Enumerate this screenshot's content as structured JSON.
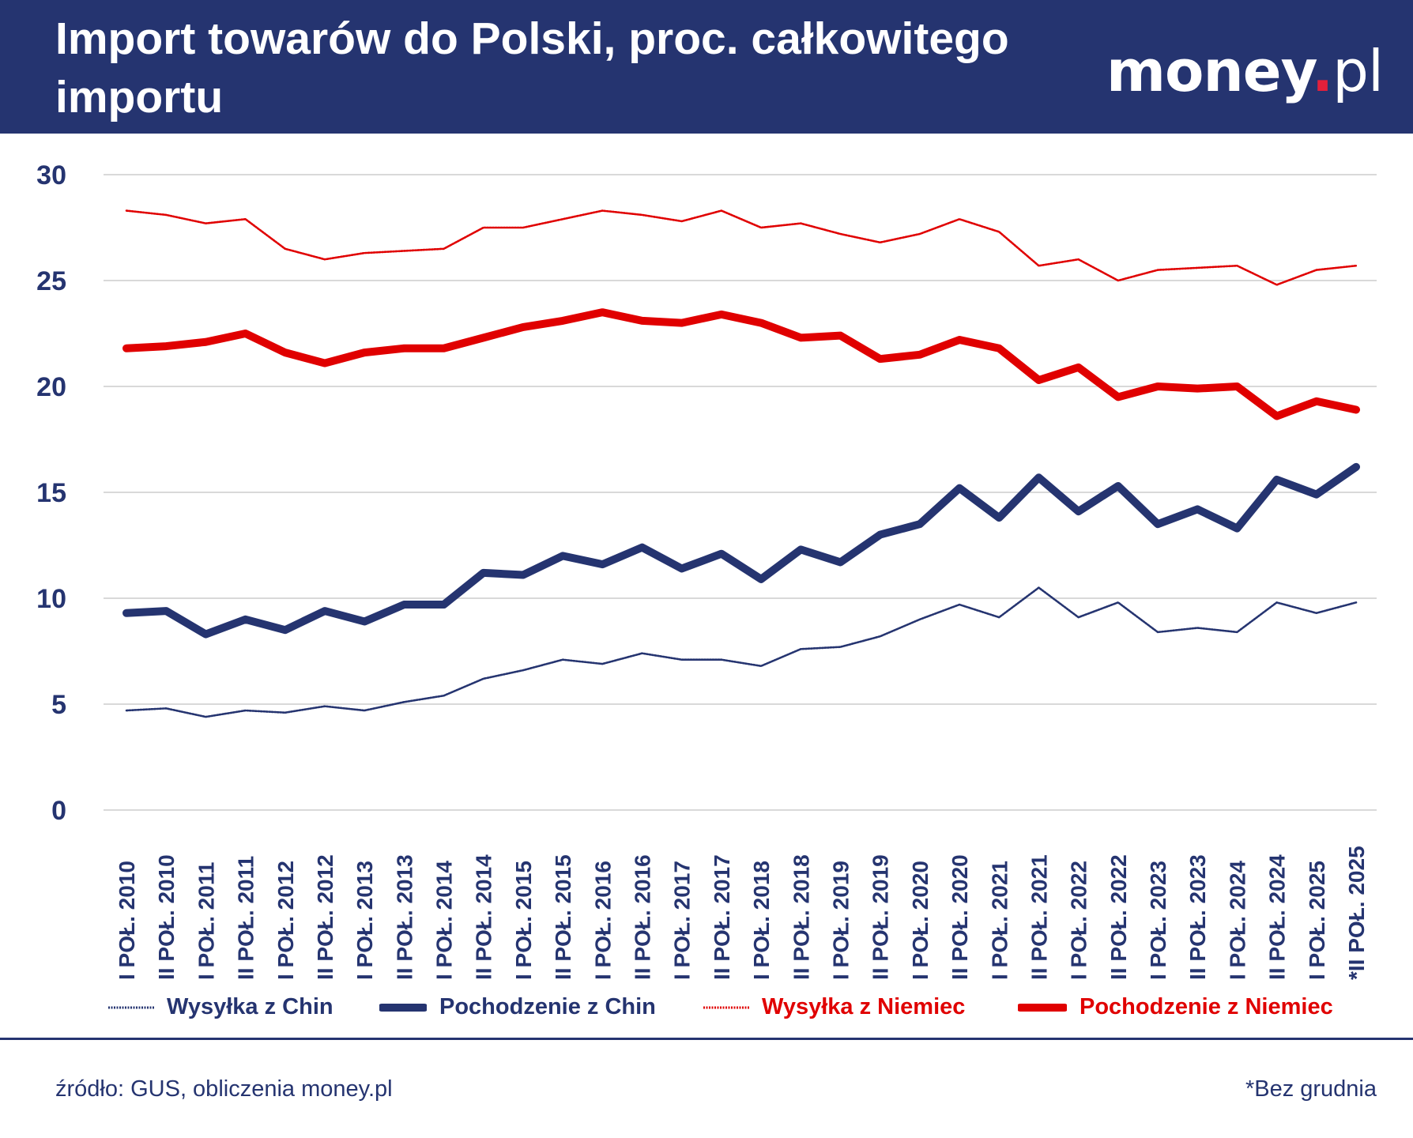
{
  "header": {
    "title": "Import towarów do Polski, proc. całkowitego importu",
    "logo": "money.pl"
  },
  "colors": {
    "navy": "#253470",
    "red": "#e00000",
    "header_bg": "#253470"
  },
  "chart_data": {
    "type": "line",
    "title": "Import towarów do Polski, proc. całkowitego importu",
    "xlabel": "",
    "ylabel": "",
    "ylim": [
      0,
      30
    ],
    "yticks": [
      0,
      5,
      10,
      15,
      20,
      25,
      30
    ],
    "grid": true,
    "legend_position": "bottom",
    "categories": [
      "I POŁ. 2010",
      "II POŁ. 2010",
      "I POŁ. 2011",
      "II POŁ. 2011",
      "I POŁ. 2012",
      "II POŁ. 2012",
      "I POŁ. 2013",
      "II POŁ. 2013",
      "I POŁ. 2014",
      "II POŁ. 2014",
      "I POŁ. 2015",
      "II POŁ. 2015",
      "I POŁ. 2016",
      "II POŁ. 2016",
      "I POŁ. 2017",
      "II POŁ. 2017",
      "I POŁ. 2018",
      "II POŁ. 2018",
      "I POŁ. 2019",
      "II POŁ. 2019",
      "I POŁ. 2020",
      "II POŁ. 2020",
      "I POŁ. 2021",
      "II POŁ. 2021",
      "I POŁ. 2022",
      "II POŁ. 2022",
      "I POŁ. 2023",
      "II POŁ. 2023",
      "I POŁ. 2024",
      "II POŁ. 2024",
      "I POŁ. 2025",
      "*II POŁ. 2025"
    ],
    "series": [
      {
        "name": "Wysyłka z Chin",
        "color": "#253470",
        "style": "dotted-thin",
        "values": [
          4.7,
          4.8,
          4.4,
          4.7,
          4.6,
          4.9,
          4.7,
          5.1,
          5.4,
          6.2,
          6.6,
          7.1,
          6.9,
          7.4,
          7.1,
          7.1,
          6.8,
          7.6,
          7.7,
          8.2,
          9.0,
          9.7,
          9.1,
          10.5,
          9.1,
          9.8,
          8.4,
          8.6,
          8.4,
          9.8,
          9.3,
          9.8
        ]
      },
      {
        "name": "Pochodzenie z Chin",
        "color": "#253470",
        "style": "thick",
        "values": [
          9.3,
          9.4,
          8.3,
          9.0,
          8.5,
          9.4,
          8.9,
          9.7,
          9.7,
          11.2,
          11.1,
          12.0,
          11.6,
          12.4,
          11.4,
          12.1,
          10.9,
          12.3,
          11.7,
          13.0,
          13.5,
          15.2,
          13.8,
          15.7,
          14.1,
          15.3,
          13.5,
          14.2,
          13.3,
          15.6,
          14.9,
          16.2
        ]
      },
      {
        "name": "Wysyłka z Niemiec",
        "color": "#e00000",
        "style": "dotted-thin",
        "values": [
          28.3,
          28.1,
          27.7,
          27.9,
          26.5,
          26.0,
          26.3,
          26.4,
          26.5,
          27.5,
          27.5,
          27.9,
          28.3,
          28.1,
          27.8,
          28.3,
          27.5,
          27.7,
          27.2,
          26.8,
          27.2,
          27.9,
          27.3,
          25.7,
          26.0,
          25.0,
          25.5,
          25.6,
          25.7,
          24.8,
          25.5,
          25.7
        ]
      },
      {
        "name": "Pochodzenie z Niemiec",
        "color": "#e00000",
        "style": "thick",
        "values": [
          21.8,
          21.9,
          22.1,
          22.5,
          21.6,
          21.1,
          21.6,
          21.8,
          21.8,
          22.3,
          22.8,
          23.1,
          23.5,
          23.1,
          23.0,
          23.4,
          23.0,
          22.3,
          22.4,
          21.3,
          21.5,
          22.2,
          21.8,
          20.3,
          20.9,
          19.5,
          20.0,
          19.9,
          20.0,
          18.6,
          19.3,
          18.9
        ]
      }
    ]
  },
  "footer": {
    "source": "źródło: GUS, obliczenia money.pl",
    "note": "*Bez grudnia"
  }
}
